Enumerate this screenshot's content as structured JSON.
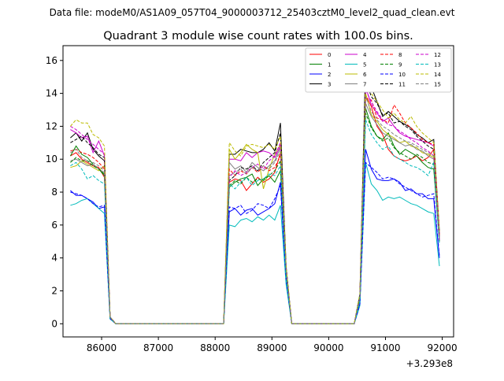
{
  "figure": {
    "suptitle": "Data file: modeM0/AS1A09_057T04_9000003712_25403cztM0_level2_quad_clean.evt"
  },
  "chart_data": {
    "type": "line",
    "title": "Quadrant 3 module wise count rates with 100.0s bins.",
    "xlabel": "",
    "ylabel": "",
    "x_offset_label": "+3.293e8",
    "xlim": [
      85320,
      92200
    ],
    "ylim": [
      -0.8,
      16.9
    ],
    "xticks": [
      86000,
      87000,
      88000,
      89000,
      90000,
      91000,
      92000
    ],
    "xtick_labels": [
      "86000",
      "87000",
      "88000",
      "89000",
      "90000",
      "91000",
      "92000"
    ],
    "yticks": [
      0,
      2,
      4,
      6,
      8,
      10,
      12,
      14,
      16
    ],
    "ytick_labels": [
      "0",
      "2",
      "4",
      "6",
      "8",
      "10",
      "12",
      "14",
      "16"
    ],
    "legend_position": "top-right",
    "legend_columns": 4,
    "x": [
      85450,
      85550,
      85650,
      85750,
      85850,
      85950,
      86050,
      86150,
      86250,
      86350,
      86450,
      86550,
      86650,
      86750,
      86850,
      86950,
      87050,
      87150,
      87250,
      87350,
      87450,
      87550,
      87650,
      87750,
      87850,
      87950,
      88050,
      88150,
      88250,
      88350,
      88450,
      88550,
      88650,
      88750,
      88850,
      88950,
      89050,
      89150,
      89250,
      89350,
      89450,
      89550,
      89650,
      89750,
      89850,
      89950,
      90050,
      90150,
      90250,
      90350,
      90450,
      90550,
      90650,
      90750,
      90850,
      90950,
      91050,
      91150,
      91250,
      91350,
      91450,
      91550,
      91650,
      91750,
      91850,
      91950
    ],
    "series": [
      {
        "name": "0",
        "color": "#ff0000",
        "dash": "solid",
        "values": [
          10.2,
          10.4,
          10.0,
          9.8,
          9.6,
          9.5,
          8.9,
          0.4,
          0,
          0,
          0,
          0,
          0,
          0,
          0,
          0,
          0,
          0,
          0,
          0,
          0,
          0,
          0,
          0,
          0,
          0,
          0,
          0,
          8.6,
          8.8,
          8.7,
          8.1,
          8.5,
          8.9,
          8.6,
          8.8,
          9.2,
          10.4,
          3.2,
          0,
          0,
          0,
          0,
          0,
          0,
          0,
          0,
          0,
          0,
          0,
          0,
          1.6,
          13.9,
          13.2,
          12.0,
          11.5,
          10.6,
          10.2,
          10.0,
          9.9,
          10.0,
          10.2,
          9.9,
          10.1,
          10.6,
          5.3
        ]
      },
      {
        "name": "1",
        "color": "#008000",
        "dash": "solid",
        "values": [
          10.2,
          10.8,
          10.3,
          10.1,
          9.7,
          9.4,
          9.0,
          0.4,
          0,
          0,
          0,
          0,
          0,
          0,
          0,
          0,
          0,
          0,
          0,
          0,
          0,
          0,
          0,
          0,
          0,
          0,
          0,
          0,
          8.3,
          8.6,
          8.8,
          8.9,
          9.1,
          8.4,
          8.8,
          9.0,
          8.6,
          9.3,
          3.0,
          0,
          0,
          0,
          0,
          0,
          0,
          0,
          0,
          0,
          0,
          0,
          0,
          1.5,
          13.1,
          12.0,
          11.4,
          11.2,
          11.6,
          10.8,
          10.3,
          10.6,
          10.4,
          10.2,
          9.8,
          9.5,
          9.4,
          5.0
        ]
      },
      {
        "name": "2",
        "color": "#0000ff",
        "dash": "solid",
        "values": [
          8.1,
          7.8,
          7.8,
          7.6,
          7.4,
          7.0,
          7.1,
          0.3,
          0,
          0,
          0,
          0,
          0,
          0,
          0,
          0,
          0,
          0,
          0,
          0,
          0,
          0,
          0,
          0,
          0,
          0,
          0,
          0,
          6.8,
          7.0,
          6.6,
          6.9,
          7.0,
          6.6,
          6.8,
          7.0,
          7.3,
          8.6,
          2.7,
          0,
          0,
          0,
          0,
          0,
          0,
          0,
          0,
          0,
          0,
          0,
          0,
          1.2,
          10.6,
          9.4,
          8.8,
          8.7,
          8.7,
          8.8,
          8.6,
          8.1,
          8.2,
          7.9,
          7.9,
          7.6,
          7.6,
          4.0
        ]
      },
      {
        "name": "3",
        "color": "#000000",
        "dash": "solid",
        "values": [
          11.3,
          11.6,
          11.1,
          11.6,
          10.6,
          10.2,
          9.9,
          0.4,
          0,
          0,
          0,
          0,
          0,
          0,
          0,
          0,
          0,
          0,
          0,
          0,
          0,
          0,
          0,
          0,
          0,
          0,
          0,
          0,
          10.3,
          10.3,
          10.6,
          10.5,
          10.4,
          10.4,
          10.6,
          11.0,
          10.5,
          12.2,
          3.5,
          0,
          0,
          0,
          0,
          0,
          0,
          0,
          0,
          0,
          0,
          0,
          0,
          1.8,
          16.0,
          14.4,
          13.5,
          12.6,
          12.9,
          12.6,
          12.3,
          12.1,
          11.9,
          11.5,
          11.3,
          11.0,
          11.2,
          5.6
        ]
      },
      {
        "name": "4",
        "color": "#cc00cc",
        "dash": "solid",
        "values": [
          11.8,
          11.6,
          11.3,
          11.4,
          10.4,
          11.1,
          10.2,
          0.4,
          0,
          0,
          0,
          0,
          0,
          0,
          0,
          0,
          0,
          0,
          0,
          0,
          0,
          0,
          0,
          0,
          0,
          0,
          0,
          0,
          10.0,
          10.0,
          9.9,
          10.4,
          10.1,
          10.4,
          10.5,
          10.4,
          10.1,
          10.8,
          3.3,
          0,
          0,
          0,
          0,
          0,
          0,
          0,
          0,
          0,
          0,
          0,
          0,
          1.7,
          14.4,
          13.3,
          12.8,
          12.3,
          12.5,
          12.0,
          11.6,
          11.4,
          11.3,
          11.2,
          11.1,
          11.0,
          10.8,
          5.4
        ]
      },
      {
        "name": "5",
        "color": "#00bbbb",
        "dash": "solid",
        "values": [
          7.2,
          7.3,
          7.5,
          7.6,
          7.3,
          7.0,
          6.7,
          0.3,
          0,
          0,
          0,
          0,
          0,
          0,
          0,
          0,
          0,
          0,
          0,
          0,
          0,
          0,
          0,
          0,
          0,
          0,
          0,
          0,
          6.0,
          5.9,
          6.3,
          6.4,
          6.2,
          6.5,
          6.3,
          6.6,
          6.3,
          7.2,
          2.4,
          0,
          0,
          0,
          0,
          0,
          0,
          0,
          0,
          0,
          0,
          0,
          0,
          1.1,
          9.8,
          8.5,
          8.1,
          7.5,
          7.7,
          7.6,
          7.7,
          7.5,
          7.3,
          7.2,
          7.0,
          6.8,
          6.7,
          3.5
        ]
      },
      {
        "name": "6",
        "color": "#bbbb00",
        "dash": "solid",
        "values": [
          9.5,
          9.6,
          9.9,
          9.7,
          9.5,
          9.3,
          9.6,
          0.4,
          0,
          0,
          0,
          0,
          0,
          0,
          0,
          0,
          0,
          0,
          0,
          0,
          0,
          0,
          0,
          0,
          0,
          0,
          0,
          0,
          10.6,
          10.0,
          10.4,
          10.9,
          10.6,
          10.4,
          8.2,
          9.4,
          10.3,
          10.9,
          3.3,
          0,
          0,
          0,
          0,
          0,
          0,
          0,
          0,
          0,
          0,
          0,
          0,
          1.7,
          14.0,
          12.7,
          12.3,
          11.8,
          11.5,
          11.3,
          11.0,
          11.1,
          10.8,
          10.7,
          10.4,
          10.3,
          10.1,
          5.2
        ]
      },
      {
        "name": "7",
        "color": "#808080",
        "dash": "solid",
        "values": [
          9.9,
          10.0,
          9.8,
          9.6,
          9.7,
          9.4,
          9.2,
          0.4,
          0,
          0,
          0,
          0,
          0,
          0,
          0,
          0,
          0,
          0,
          0,
          0,
          0,
          0,
          0,
          0,
          0,
          0,
          0,
          0,
          9.8,
          9.4,
          9.6,
          9.2,
          9.8,
          9.5,
          9.3,
          9.6,
          9.9,
          10.7,
          3.2,
          0,
          0,
          0,
          0,
          0,
          0,
          0,
          0,
          0,
          0,
          0,
          0,
          1.6,
          13.4,
          12.6,
          12.1,
          11.6,
          11.4,
          11.2,
          11.0,
          10.8,
          10.9,
          10.6,
          10.5,
          10.2,
          10.0,
          5.1
        ]
      },
      {
        "name": "8",
        "color": "#ff0000",
        "dash": "dashed",
        "values": [
          10.5,
          10.6,
          10.4,
          10.3,
          10.1,
          9.8,
          9.4,
          0.4,
          0,
          0,
          0,
          0,
          0,
          0,
          0,
          0,
          0,
          0,
          0,
          0,
          0,
          0,
          0,
          0,
          0,
          0,
          0,
          0,
          9.4,
          9.0,
          9.3,
          9.1,
          9.5,
          9.2,
          9.6,
          9.3,
          9.5,
          10.2,
          3.1,
          0,
          0,
          0,
          0,
          0,
          0,
          0,
          0,
          0,
          0,
          0,
          0,
          1.6,
          13.7,
          13.6,
          12.5,
          12.4,
          12.2,
          13.3,
          12.8,
          12.2,
          11.9,
          11.6,
          11.2,
          11.0,
          10.9,
          5.4
        ]
      },
      {
        "name": "9",
        "color": "#008000",
        "dash": "dashed",
        "values": [
          9.8,
          10.1,
          9.9,
          9.9,
          9.6,
          9.4,
          9.1,
          0.4,
          0,
          0,
          0,
          0,
          0,
          0,
          0,
          0,
          0,
          0,
          0,
          0,
          0,
          0,
          0,
          0,
          0,
          0,
          0,
          0,
          8.4,
          8.7,
          8.5,
          8.9,
          8.6,
          8.8,
          8.7,
          9.0,
          9.3,
          9.9,
          3.0,
          0,
          0,
          0,
          0,
          0,
          0,
          0,
          0,
          0,
          0,
          0,
          0,
          1.5,
          12.8,
          11.9,
          11.4,
          11.1,
          11.3,
          10.7,
          10.4,
          10.2,
          10.0,
          10.3,
          10.1,
          9.8,
          9.7,
          5.0
        ]
      },
      {
        "name": "10",
        "color": "#0000ff",
        "dash": "dashed",
        "values": [
          8.0,
          7.9,
          7.8,
          7.6,
          7.3,
          7.1,
          7.2,
          0.3,
          0,
          0,
          0,
          0,
          0,
          0,
          0,
          0,
          0,
          0,
          0,
          0,
          0,
          0,
          0,
          0,
          0,
          0,
          0,
          0,
          7.1,
          7.0,
          7.2,
          6.7,
          6.9,
          7.3,
          7.2,
          7.0,
          7.6,
          8.4,
          2.7,
          0,
          0,
          0,
          0,
          0,
          0,
          0,
          0,
          0,
          0,
          0,
          0,
          1.2,
          9.8,
          9.5,
          9.2,
          8.8,
          8.9,
          8.8,
          8.5,
          8.3,
          8.1,
          7.9,
          7.7,
          7.8,
          7.9,
          4.1
        ]
      },
      {
        "name": "11",
        "color": "#000000",
        "dash": "dashed",
        "values": [
          11.0,
          11.2,
          11.4,
          11.0,
          10.7,
          10.3,
          10.1,
          0.4,
          0,
          0,
          0,
          0,
          0,
          0,
          0,
          0,
          0,
          0,
          0,
          0,
          0,
          0,
          0,
          0,
          0,
          0,
          0,
          0,
          8.7,
          9.0,
          9.5,
          9.4,
          9.6,
          9.3,
          9.8,
          10.1,
          10.4,
          11.6,
          3.4,
          0,
          0,
          0,
          0,
          0,
          0,
          0,
          0,
          0,
          0,
          0,
          0,
          1.7,
          14.8,
          13.8,
          13.4,
          12.7,
          12.8,
          12.2,
          12.3,
          12.0,
          11.8,
          11.4,
          11.1,
          10.8,
          10.6,
          5.3
        ]
      },
      {
        "name": "12",
        "color": "#cc00cc",
        "dash": "dashed",
        "values": [
          12.0,
          11.8,
          11.5,
          11.2,
          10.9,
          10.6,
          10.3,
          0.4,
          0,
          0,
          0,
          0,
          0,
          0,
          0,
          0,
          0,
          0,
          0,
          0,
          0,
          0,
          0,
          0,
          0,
          0,
          0,
          0,
          8.9,
          9.3,
          9.0,
          9.2,
          9.5,
          9.7,
          9.4,
          9.9,
          10.2,
          11.0,
          3.3,
          0,
          0,
          0,
          0,
          0,
          0,
          0,
          0,
          0,
          0,
          0,
          0,
          1.6,
          14.2,
          13.5,
          12.9,
          12.4,
          12.1,
          12.0,
          11.7,
          11.5,
          11.2,
          11.0,
          10.7,
          10.5,
          10.2,
          5.1
        ]
      },
      {
        "name": "13",
        "color": "#00bbbb",
        "dash": "dashed",
        "values": [
          9.6,
          9.8,
          9.4,
          8.8,
          9.0,
          8.7,
          8.5,
          0.3,
          0,
          0,
          0,
          0,
          0,
          0,
          0,
          0,
          0,
          0,
          0,
          0,
          0,
          0,
          0,
          0,
          0,
          0,
          0,
          0,
          8.5,
          8.2,
          8.6,
          8.9,
          8.4,
          8.7,
          8.8,
          9.1,
          9.0,
          9.6,
          2.9,
          0,
          0,
          0,
          0,
          0,
          0,
          0,
          0,
          0,
          0,
          0,
          0,
          1.4,
          12.4,
          11.5,
          11.0,
          10.6,
          10.8,
          10.2,
          10.0,
          9.8,
          9.6,
          9.5,
          9.3,
          9.0,
          9.8,
          4.8
        ]
      },
      {
        "name": "14",
        "color": "#bbbb00",
        "dash": "dashed",
        "values": [
          12.0,
          12.4,
          12.2,
          12.2,
          11.5,
          11.3,
          10.8,
          0.4,
          0,
          0,
          0,
          0,
          0,
          0,
          0,
          0,
          0,
          0,
          0,
          0,
          0,
          0,
          0,
          0,
          0,
          0,
          0,
          0,
          11.0,
          10.5,
          10.2,
          10.8,
          10.9,
          10.8,
          10.7,
          10.9,
          10.6,
          11.4,
          3.5,
          0,
          0,
          0,
          0,
          0,
          0,
          0,
          0,
          0,
          0,
          0,
          0,
          1.8,
          15.0,
          14.0,
          13.5,
          13.0,
          12.5,
          12.8,
          12.4,
          12.2,
          12.6,
          12.0,
          11.6,
          11.3,
          11.0,
          5.6
        ]
      },
      {
        "name": "15",
        "color": "#808080",
        "dash": "dashed",
        "values": [
          10.4,
          10.6,
          10.1,
          9.9,
          9.8,
          9.6,
          9.3,
          0.4,
          0,
          0,
          0,
          0,
          0,
          0,
          0,
          0,
          0,
          0,
          0,
          0,
          0,
          0,
          0,
          0,
          0,
          0,
          0,
          0,
          9.0,
          9.2,
          9.4,
          9.1,
          9.5,
          9.3,
          9.6,
          9.4,
          9.8,
          10.5,
          3.2,
          0,
          0,
          0,
          0,
          0,
          0,
          0,
          0,
          0,
          0,
          0,
          0,
          1.6,
          13.8,
          12.9,
          12.4,
          12.0,
          11.8,
          11.5,
          11.3,
          11.1,
          11.0,
          10.8,
          10.6,
          10.4,
          10.2,
          5.2
        ]
      }
    ]
  }
}
